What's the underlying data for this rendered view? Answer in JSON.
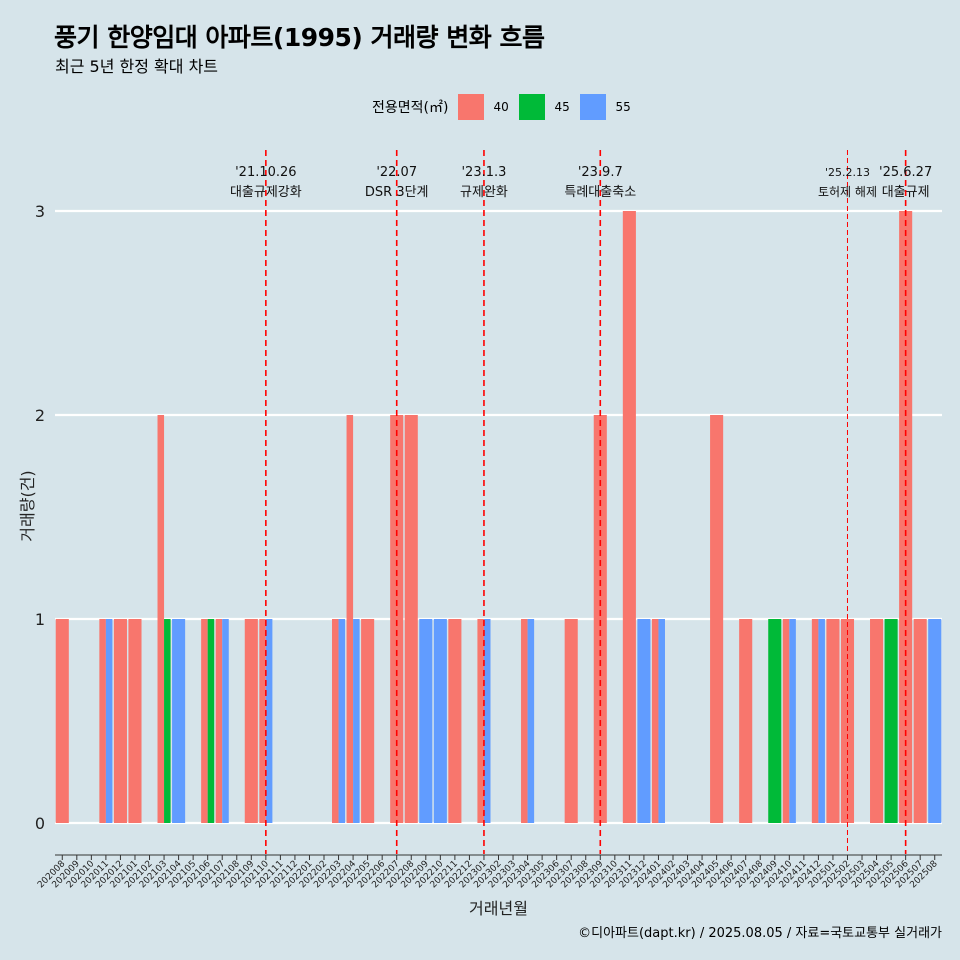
{
  "header": {
    "title": "풍기 한양임대 아파트(1995) 거래량 변화 흐름",
    "subtitle": "최근 5년 한정 확대 차트"
  },
  "legend": {
    "title": "전용면적(㎡)",
    "items": [
      {
        "label": "40",
        "color": "#F8766D"
      },
      {
        "label": "45",
        "color": "#00BA38"
      },
      {
        "label": "55",
        "color": "#619CFF"
      }
    ]
  },
  "caption": "©디아파트(dapt.kr) / 2025.08.05 / 자료=국토교통부 실거래가",
  "chart_data": {
    "type": "bar",
    "xlabel": "거래년월",
    "ylabel": "거래량(건)",
    "ylim": [
      0,
      3
    ],
    "yticks": [
      0,
      1,
      2,
      3
    ],
    "grid": true,
    "categories": [
      "202008",
      "202009",
      "202010",
      "202011",
      "202012",
      "202101",
      "202102",
      "202103",
      "202104",
      "202105",
      "202106",
      "202107",
      "202108",
      "202109",
      "202110",
      "202111",
      "202112",
      "202201",
      "202202",
      "202203",
      "202204",
      "202205",
      "202206",
      "202207",
      "202208",
      "202209",
      "202210",
      "202211",
      "202212",
      "202301",
      "202302",
      "202303",
      "202304",
      "202305",
      "202306",
      "202307",
      "202308",
      "202309",
      "202310",
      "202311",
      "202312",
      "202401",
      "202402",
      "202403",
      "202404",
      "202405",
      "202406",
      "202407",
      "202408",
      "202409",
      "202410",
      "202411",
      "202412",
      "202501",
      "202502",
      "202503",
      "202504",
      "202505",
      "202506",
      "202507",
      "202508"
    ],
    "series": [
      {
        "name": "40",
        "color": "#F8766D",
        "values": [
          1,
          0,
          0,
          1,
          1,
          1,
          0,
          2,
          0,
          0,
          1,
          1,
          0,
          1,
          1,
          0,
          0,
          0,
          0,
          1,
          2,
          1,
          0,
          2,
          2,
          0,
          0,
          1,
          0,
          1,
          0,
          0,
          1,
          0,
          0,
          1,
          0,
          2,
          0,
          3,
          0,
          1,
          0,
          0,
          0,
          2,
          0,
          1,
          0,
          0,
          1,
          0,
          1,
          1,
          1,
          0,
          1,
          0,
          3,
          1,
          0
        ]
      },
      {
        "name": "45",
        "color": "#00BA38",
        "values": [
          0,
          0,
          0,
          0,
          0,
          0,
          0,
          1,
          0,
          0,
          1,
          0,
          0,
          0,
          0,
          0,
          0,
          0,
          0,
          0,
          0,
          0,
          0,
          0,
          0,
          0,
          0,
          0,
          0,
          0,
          0,
          0,
          0,
          0,
          0,
          0,
          0,
          0,
          0,
          0,
          0,
          0,
          0,
          0,
          0,
          0,
          0,
          0,
          0,
          1,
          0,
          0,
          0,
          0,
          0,
          0,
          0,
          1,
          0,
          0,
          0
        ]
      },
      {
        "name": "55",
        "color": "#619CFF",
        "values": [
          0,
          0,
          0,
          1,
          0,
          0,
          0,
          0,
          1,
          0,
          0,
          1,
          0,
          0,
          1,
          0,
          0,
          0,
          0,
          1,
          1,
          0,
          0,
          0,
          0,
          1,
          1,
          0,
          0,
          1,
          0,
          0,
          1,
          0,
          0,
          0,
          0,
          0,
          0,
          0,
          1,
          1,
          0,
          0,
          0,
          0,
          0,
          0,
          0,
          0,
          1,
          0,
          1,
          0,
          0,
          0,
          0,
          0,
          0,
          0,
          1
        ]
      }
    ],
    "annotations": [
      {
        "date": "'21.10.26",
        "text": "대출규제강화",
        "x": "202110",
        "style": "major"
      },
      {
        "date": "'22.07",
        "text": "DSR 3단계",
        "x": "202207",
        "style": "major"
      },
      {
        "date": "'23.1.3",
        "text": "규제완화",
        "x": "202301",
        "style": "major"
      },
      {
        "date": "'23.9.7",
        "text": "특례대출축소",
        "x": "202309",
        "style": "major"
      },
      {
        "date": "'25.2.13",
        "text": "토허제 해제",
        "x": "202502",
        "style": "minor"
      },
      {
        "date": "'25.6.27",
        "text": "대출규제",
        "x": "202506",
        "style": "major"
      }
    ]
  }
}
